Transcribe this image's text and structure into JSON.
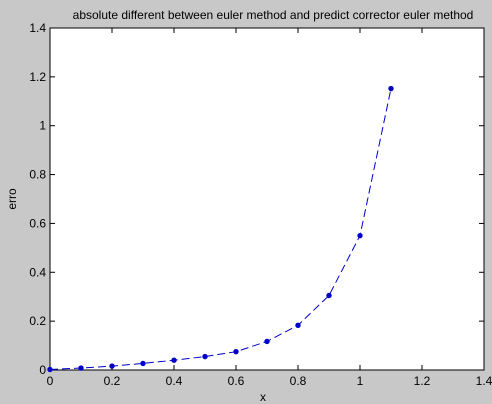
{
  "chart_data": {
    "type": "line",
    "title": "absolute different between euler method and predict corrector euler method",
    "xlabel": "x",
    "ylabel": "erro",
    "xlim": [
      0,
      1.4
    ],
    "ylim": [
      0,
      1.4
    ],
    "xticks": [
      "0",
      "0.2",
      "0.4",
      "0.6",
      "0.8",
      "1",
      "1.2",
      "1.4"
    ],
    "yticks": [
      "0",
      "0.2",
      "0.4",
      "0.6",
      "0.8",
      "1",
      "1.2",
      "1.4"
    ],
    "grid": true,
    "legend": "none",
    "series": [
      {
        "x": [
          0,
          0.1,
          0.2,
          0.3,
          0.4,
          0.5,
          0.6,
          0.7,
          0.8,
          0.9,
          1.0,
          1.1
        ],
        "y": [
          0.002,
          0.008,
          0.016,
          0.027,
          0.04,
          0.055,
          0.075,
          0.117,
          0.183,
          0.305,
          0.55,
          1.152
        ],
        "color": "#0000cc",
        "line_style": "dashed",
        "marker": "dot"
      }
    ]
  },
  "colors": {
    "figure_background": "#c8c8c8",
    "axes_background": "#ffffff",
    "grid": "#000000",
    "series": "#0000cc"
  }
}
